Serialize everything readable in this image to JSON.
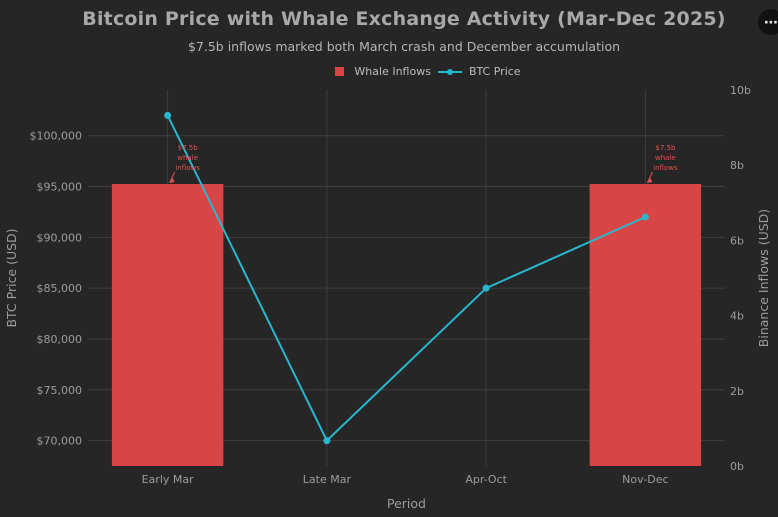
{
  "menu": {
    "icon": "more-dots-icon",
    "label": "⋯"
  },
  "chart_data": {
    "type": "bar+line",
    "title": "Bitcoin Price with Whale Exchange Activity (Mar-Dec 2025)",
    "subtitle": "$7.5b inflows marked both March crash and December accumulation",
    "categories": [
      "Early Mar",
      "Late Mar",
      "Apr-Oct",
      "Nov-Dec"
    ],
    "xlabel": "Period",
    "ylabel_left": "BTC Price (USD)",
    "ylabel_right": "Binance Inflows (USD)",
    "ylim_left": [
      67500,
      104500
    ],
    "ylim_right": [
      0,
      10
    ],
    "left_ticks": [
      70000,
      75000,
      80000,
      85000,
      90000,
      95000,
      100000
    ],
    "left_tick_labels": [
      "$70,000",
      "$75,000",
      "$80,000",
      "$85,000",
      "$90,000",
      "$95,000",
      "$100,000"
    ],
    "right_ticks": [
      0,
      2,
      4,
      6,
      8,
      10
    ],
    "right_tick_labels": [
      "0b",
      "2b",
      "4b",
      "6b",
      "8b",
      "10b"
    ],
    "grid": true,
    "legend_position": "top-center",
    "series": [
      {
        "name": "Whale Inflows",
        "kind": "bar",
        "axis": "right",
        "color": "#d94545",
        "values": [
          7.5,
          null,
          null,
          7.5
        ]
      },
      {
        "name": "BTC Price",
        "kind": "line",
        "axis": "left",
        "color": "#29b6cf",
        "values": [
          102000,
          70000,
          85000,
          92000
        ]
      }
    ],
    "annotations": [
      {
        "category": "Early Mar",
        "lines": [
          "$7.5b",
          "whale",
          "inflows"
        ]
      },
      {
        "category": "Nov-Dec",
        "lines": [
          "$7.5b",
          "whale",
          "inflows"
        ]
      }
    ]
  }
}
